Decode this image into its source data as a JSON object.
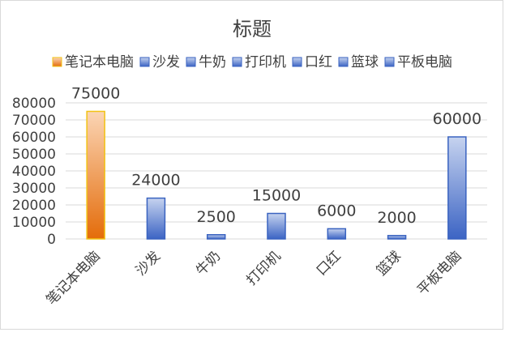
{
  "chart_data": {
    "type": "bar",
    "title": "标题",
    "categories": [
      "笔记本电脑",
      "沙发",
      "牛奶",
      "打印机",
      "口红",
      "篮球",
      "平板电脑"
    ],
    "values": [
      75000,
      24000,
      2500,
      15000,
      6000,
      2000,
      60000
    ],
    "data_labels": [
      "75000",
      "24000",
      "2500",
      "15000",
      "6000",
      "2000",
      "60000"
    ],
    "ylim": [
      0,
      80000
    ],
    "y_ticks": [
      0,
      10000,
      20000,
      30000,
      40000,
      50000,
      60000,
      70000,
      80000
    ],
    "y_tick_labels": [
      "0",
      "10000",
      "20000",
      "30000",
      "40000",
      "50000",
      "60000",
      "70000",
      "80000"
    ],
    "grid": true,
    "legend": {
      "placement": "top",
      "entries": [
        "笔记本电脑",
        "沙发",
        "牛奶",
        "打印机",
        "口红",
        "篮球",
        "平板电脑"
      ]
    },
    "colors": {
      "highlight_top": "#fbd5b5",
      "highlight_bottom": "#e46c0a",
      "highlight_border": "#f2c314",
      "normal_top": "#c6d3ef",
      "normal_bottom": "#3c64c4",
      "normal_border": "#3a63c0",
      "grid": "#d9d9d9",
      "text": "#404040"
    },
    "highlight_index": 0
  }
}
